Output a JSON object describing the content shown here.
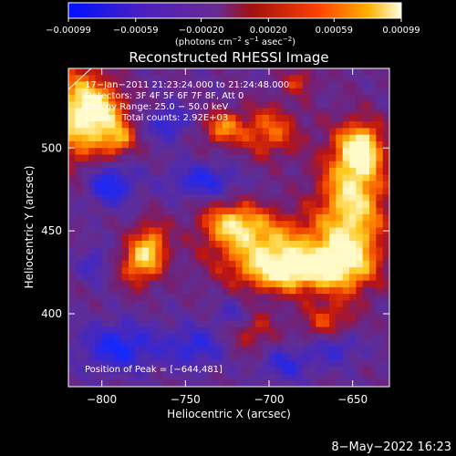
{
  "chart_data": {
    "type": "heatmap",
    "title": "Reconstructed RHESSI Image",
    "xlabel": "Heliocentric X (arcsec)",
    "ylabel": "Heliocentric Y (arcsec)",
    "xlim": [
      -820,
      -628
    ],
    "ylim": [
      356,
      548
    ],
    "xticks": [
      -800,
      -750,
      -700,
      -650
    ],
    "yticks": [
      400,
      450,
      500
    ],
    "xtick_labels": [
      "−800",
      "−750",
      "−700",
      "−650"
    ],
    "ytick_labels": [
      "400",
      "450",
      "500"
    ],
    "colorbar": {
      "range": [
        -0.00099,
        0.00099
      ],
      "tick_labels": [
        "−0.00099",
        "−0.00059",
        "−0.00020",
        "0.00020",
        "0.00059",
        "0.00099"
      ],
      "colors": [
        "#0000ff",
        "#5a1fb0",
        "#6a2a9a",
        "#a01010",
        "#ff3800",
        "#ff9a00",
        "#ffe060",
        "#ffffff"
      ]
    },
    "annotations": {
      "time_range": "17−Jan−2011 21:23:24.000 to 21:24:48.000",
      "detectors": "Detectors: 3F 4F 5F 6F 7F 8F, Att 0",
      "energy": "Energy Range: 25.0 − 50.0 keV",
      "clean": "Clean    Total counts: 2.92E+03",
      "peak": "Position of Peak = [−644,481]"
    },
    "peak": [
      -644,
      481
    ]
  },
  "footer": {
    "timestamp": "8−May−2022 16:23"
  }
}
